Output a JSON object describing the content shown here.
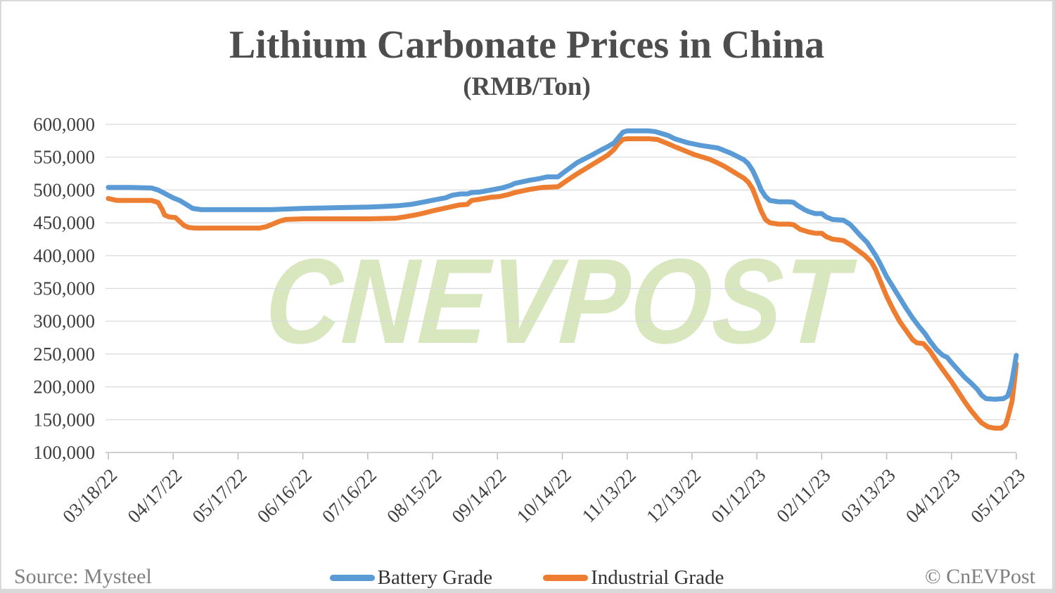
{
  "title": "Lithium Carbonate Prices in China",
  "subtitle": "(RMB/Ton)",
  "watermark": "CNEVPOST",
  "footer": {
    "source": "Source: Mysteel",
    "credit": "© CnEVPost"
  },
  "legend": {
    "battery": {
      "label": "Battery Grade",
      "color": "#5B9BD5"
    },
    "industrial": {
      "label": "Industrial Grade",
      "color": "#ED7D31"
    }
  },
  "chart_data": {
    "type": "line",
    "title": "Lithium Carbonate Prices in China",
    "subtitle": "(RMB/Ton)",
    "grid": true,
    "legend_position": "bottom",
    "ylabel": "",
    "xlabel": "",
    "y_axis": {
      "min": 100000,
      "max": 600000,
      "step": 50000,
      "tick_labels": [
        "600,000",
        "550,000",
        "500,000",
        "450,000",
        "400,000",
        "350,000",
        "300,000",
        "250,000",
        "200,000",
        "150,000",
        "100,000"
      ]
    },
    "x_axis": {
      "unit": "days since 03/18/22",
      "domain_days": [
        0,
        420
      ],
      "tick_interval_days": 30,
      "tick_labels": [
        "03/18/22",
        "04/17/22",
        "05/17/22",
        "06/16/22",
        "07/16/22",
        "08/15/22",
        "09/14/22",
        "10/14/22",
        "11/13/22",
        "12/13/22",
        "01/12/23",
        "02/11/23",
        "03/13/23",
        "04/12/23",
        "05/12/23"
      ]
    },
    "series": [
      {
        "name": "Industrial Grade",
        "color": "#ED7D31",
        "points": [
          [
            0,
            487000
          ],
          [
            4,
            484000
          ],
          [
            20,
            484000
          ],
          [
            23,
            481000
          ],
          [
            25,
            470000
          ],
          [
            26,
            462000
          ],
          [
            28,
            459000
          ],
          [
            31,
            458000
          ],
          [
            33,
            452000
          ],
          [
            35,
            446000
          ],
          [
            37,
            443000
          ],
          [
            40,
            442000
          ],
          [
            55,
            442000
          ],
          [
            70,
            442000
          ],
          [
            73,
            444000
          ],
          [
            76,
            448000
          ],
          [
            79,
            452000
          ],
          [
            82,
            455000
          ],
          [
            90,
            456000
          ],
          [
            105,
            456000
          ],
          [
            120,
            456000
          ],
          [
            133,
            457000
          ],
          [
            137,
            459000
          ],
          [
            142,
            462000
          ],
          [
            145,
            464000
          ],
          [
            151,
            469000
          ],
          [
            158,
            474000
          ],
          [
            162,
            477000
          ],
          [
            166,
            478000
          ],
          [
            168,
            484000
          ],
          [
            172,
            486000
          ],
          [
            177,
            489000
          ],
          [
            181,
            490000
          ],
          [
            185,
            493000
          ],
          [
            188,
            496000
          ],
          [
            195,
            501000
          ],
          [
            201,
            504000
          ],
          [
            208,
            505000
          ],
          [
            212,
            514000
          ],
          [
            217,
            525000
          ],
          [
            223,
            537000
          ],
          [
            228,
            547000
          ],
          [
            231,
            553000
          ],
          [
            234,
            562000
          ],
          [
            236,
            571000
          ],
          [
            238,
            577000
          ],
          [
            240,
            578000
          ],
          [
            250,
            578000
          ],
          [
            254,
            577000
          ],
          [
            257,
            573000
          ],
          [
            260,
            569000
          ],
          [
            262,
            566000
          ],
          [
            265,
            562000
          ],
          [
            268,
            558000
          ],
          [
            271,
            554000
          ],
          [
            274,
            551000
          ],
          [
            278,
            547000
          ],
          [
            282,
            541000
          ],
          [
            285,
            536000
          ],
          [
            288,
            530000
          ],
          [
            291,
            524000
          ],
          [
            294,
            518000
          ],
          [
            296,
            512000
          ],
          [
            298,
            502000
          ],
          [
            300,
            485000
          ],
          [
            302,
            468000
          ],
          [
            304,
            455000
          ],
          [
            306,
            450000
          ],
          [
            310,
            448000
          ],
          [
            315,
            448000
          ],
          [
            317,
            447000
          ],
          [
            320,
            440000
          ],
          [
            324,
            436000
          ],
          [
            327,
            434000
          ],
          [
            330,
            434000
          ],
          [
            332,
            429000
          ],
          [
            335,
            425000
          ],
          [
            340,
            423000
          ],
          [
            343,
            417000
          ],
          [
            346,
            410000
          ],
          [
            350,
            400000
          ],
          [
            353,
            390000
          ],
          [
            355,
            378000
          ],
          [
            357,
            362000
          ],
          [
            360,
            338000
          ],
          [
            363,
            318000
          ],
          [
            366,
            300000
          ],
          [
            369,
            286000
          ],
          [
            372,
            272000
          ],
          [
            374,
            267000
          ],
          [
            377,
            266000
          ],
          [
            380,
            255000
          ],
          [
            383,
            240000
          ],
          [
            386,
            226000
          ],
          [
            390,
            208000
          ],
          [
            393,
            193000
          ],
          [
            396,
            178000
          ],
          [
            399,
            164000
          ],
          [
            402,
            152000
          ],
          [
            404,
            145000
          ],
          [
            407,
            139000
          ],
          [
            410,
            137000
          ],
          [
            413,
            137000
          ],
          [
            415,
            142000
          ],
          [
            416,
            152000
          ],
          [
            417,
            165000
          ],
          [
            418,
            178000
          ],
          [
            419,
            205000
          ],
          [
            420,
            235000
          ]
        ]
      },
      {
        "name": "Battery Grade",
        "color": "#5B9BD5",
        "points": [
          [
            0,
            504000
          ],
          [
            10,
            504000
          ],
          [
            20,
            503000
          ],
          [
            23,
            500000
          ],
          [
            26,
            495000
          ],
          [
            30,
            488000
          ],
          [
            33,
            484000
          ],
          [
            36,
            478000
          ],
          [
            39,
            472000
          ],
          [
            43,
            470000
          ],
          [
            60,
            470000
          ],
          [
            75,
            470000
          ],
          [
            90,
            472000
          ],
          [
            105,
            473000
          ],
          [
            120,
            474000
          ],
          [
            128,
            475000
          ],
          [
            134,
            476000
          ],
          [
            140,
            478000
          ],
          [
            145,
            481000
          ],
          [
            151,
            485000
          ],
          [
            156,
            488000
          ],
          [
            159,
            492000
          ],
          [
            163,
            494000
          ],
          [
            166,
            494000
          ],
          [
            168,
            496000
          ],
          [
            172,
            497000
          ],
          [
            177,
            500000
          ],
          [
            182,
            503000
          ],
          [
            186,
            507000
          ],
          [
            188,
            510000
          ],
          [
            195,
            515000
          ],
          [
            199,
            517000
          ],
          [
            203,
            520000
          ],
          [
            208,
            520000
          ],
          [
            212,
            530000
          ],
          [
            217,
            542000
          ],
          [
            223,
            552000
          ],
          [
            228,
            561000
          ],
          [
            231,
            566000
          ],
          [
            234,
            572000
          ],
          [
            236,
            580000
          ],
          [
            238,
            588000
          ],
          [
            240,
            590000
          ],
          [
            250,
            590000
          ],
          [
            253,
            589000
          ],
          [
            256,
            586000
          ],
          [
            259,
            583000
          ],
          [
            262,
            578000
          ],
          [
            265,
            575000
          ],
          [
            268,
            572000
          ],
          [
            271,
            570000
          ],
          [
            274,
            568000
          ],
          [
            278,
            566000
          ],
          [
            282,
            564000
          ],
          [
            285,
            560000
          ],
          [
            288,
            556000
          ],
          [
            291,
            551000
          ],
          [
            294,
            546000
          ],
          [
            296,
            540000
          ],
          [
            298,
            530000
          ],
          [
            300,
            516000
          ],
          [
            302,
            500000
          ],
          [
            304,
            490000
          ],
          [
            306,
            484000
          ],
          [
            310,
            482000
          ],
          [
            315,
            482000
          ],
          [
            317,
            481000
          ],
          [
            319,
            476000
          ],
          [
            322,
            470000
          ],
          [
            324,
            467000
          ],
          [
            327,
            464000
          ],
          [
            330,
            464000
          ],
          [
            332,
            459000
          ],
          [
            335,
            455000
          ],
          [
            340,
            454000
          ],
          [
            343,
            448000
          ],
          [
            345,
            441000
          ],
          [
            348,
            430000
          ],
          [
            351,
            420000
          ],
          [
            353,
            410000
          ],
          [
            355,
            400000
          ],
          [
            357,
            388000
          ],
          [
            360,
            368000
          ],
          [
            363,
            352000
          ],
          [
            366,
            336000
          ],
          [
            369,
            320000
          ],
          [
            372,
            305000
          ],
          [
            375,
            292000
          ],
          [
            378,
            280000
          ],
          [
            380,
            270000
          ],
          [
            383,
            257000
          ],
          [
            386,
            248000
          ],
          [
            388,
            245000
          ],
          [
            390,
            237000
          ],
          [
            393,
            226000
          ],
          [
            396,
            215000
          ],
          [
            399,
            206000
          ],
          [
            402,
            196000
          ],
          [
            404,
            187000
          ],
          [
            406,
            182000
          ],
          [
            410,
            181000
          ],
          [
            414,
            182000
          ],
          [
            416,
            186000
          ],
          [
            417,
            196000
          ],
          [
            418,
            210000
          ],
          [
            419,
            228000
          ],
          [
            420,
            248000
          ]
        ]
      }
    ],
    "styles": {
      "gridline_color": "#d9d9d9",
      "axis_color": "#bfbfbf",
      "tick_label_color": "#3f3f3f",
      "line_width": 7
    }
  }
}
